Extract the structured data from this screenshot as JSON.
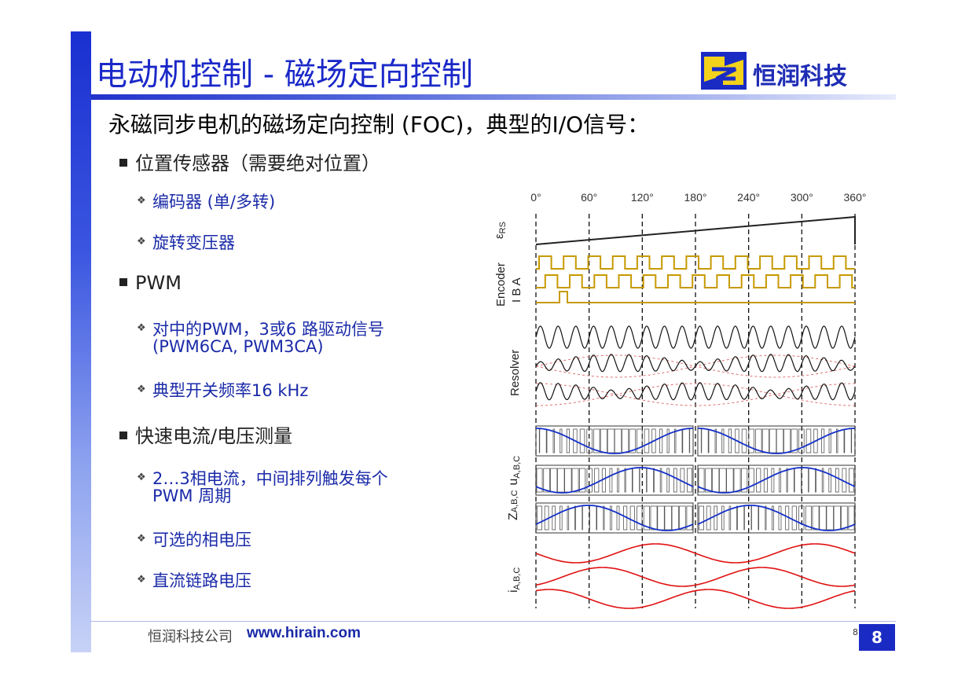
{
  "slide": {
    "title": "电动机控制 - 磁场定向控制",
    "subtitle": "永磁同步电机的磁场定向控制 (FOC)，典型的I/O信号：",
    "company_name": "恒润科技",
    "footer_company": "恒润科技公司",
    "footer_url": "www.hirain.com",
    "page_number_small": "8",
    "page_number": "8",
    "accent_color": "#1a2bc4"
  },
  "bullets": [
    {
      "level": 1,
      "text": "位置传感器（需要绝对位置）"
    },
    {
      "level": 2,
      "text": "编码器 (单/多转)"
    },
    {
      "level": 2,
      "text": "旋转变压器"
    },
    {
      "level": 1,
      "text": "PWM"
    },
    {
      "level": 2,
      "text": "对中的PWM，3或6 路驱动信号",
      "text2": "(PWM6CA, PWM3CA)"
    },
    {
      "level": 2,
      "text": "典型开关频率16 kHz"
    },
    {
      "level": 1,
      "text": "快速电流/电压测量"
    },
    {
      "level": 2,
      "text": "2…3相电流，中间排列触发每个",
      "text2": "PWM 周期"
    },
    {
      "level": 2,
      "text": "可选的相电压"
    },
    {
      "level": 2,
      "text": "直流链路电压"
    }
  ],
  "diagram": {
    "angle_labels": [
      "0°",
      "60°",
      "120°",
      "180°",
      "240°",
      "300°",
      "360°"
    ],
    "eps_label": "ε",
    "eps_sub": "RS",
    "encoder_label": "Encoder",
    "encoder_channels": "I  B  A",
    "resolver_label": "Resolver",
    "z_label": "Z",
    "z_sub": "A,B,C",
    "u_label": "u",
    "u_sub": "A,B,C",
    "i_label": "i",
    "i_sub": "A,B,C",
    "colors": {
      "encoder": "#c79a00",
      "resolver": "#111111",
      "pwm_sine": "#1530c8",
      "current": "#e01010",
      "envelope": "#e07070"
    }
  }
}
